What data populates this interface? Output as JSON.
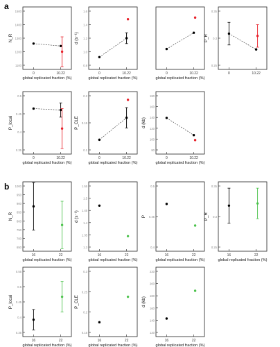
{
  "panels": {
    "a": "a",
    "b": "b"
  },
  "chart_data": [
    {
      "id": "a1",
      "type": "scatter",
      "ylabel": "N_R",
      "xlabel": "global replicated fraction (%)",
      "yticks": [
        "1500",
        "1400",
        "1300",
        "1200",
        "1100"
      ],
      "ylim": [
        1100,
        1500
      ],
      "xticks": [
        "0",
        "10.22"
      ],
      "series": [
        {
          "name": "black",
          "color": "#000000",
          "points": [
            {
              "x": "0",
              "y": 1260,
              "err": 0
            },
            {
              "x": "10.22",
              "y": 1242,
              "err": 0
            }
          ]
        },
        {
          "name": "red",
          "color": "#e8202a",
          "points": [
            {
              "x": "10.22",
              "y": 1200,
              "err": 110
            }
          ]
        }
      ]
    },
    {
      "id": "a2",
      "type": "scatter",
      "ylabel": "d (s⁻¹)",
      "xlabel": "global replicated fraction (%)",
      "yticks": [
        "1.6",
        "1.4",
        "1.2",
        "1.0",
        "0.8"
      ],
      "ylim": [
        0.8,
        1.6
      ],
      "xticks": [
        "0",
        "10.22"
      ],
      "series": [
        {
          "name": "black",
          "color": "#000000",
          "points": [
            {
              "x": "0",
              "y": 0.92,
              "err": 0
            },
            {
              "x": "10.22",
              "y": 1.2,
              "err": 0.08
            }
          ]
        },
        {
          "name": "red",
          "color": "#e8202a",
          "points": [
            {
              "x": "10.22",
              "y": 1.48,
              "err": 0
            }
          ]
        }
      ]
    },
    {
      "id": "a3",
      "type": "scatter",
      "ylabel": "",
      "xlabel": "global replicated fraction (%)",
      "yticks": [],
      "ylim": [
        0,
        1
      ],
      "xticks": [
        "0",
        "10.22"
      ],
      "series": [
        {
          "name": "black",
          "color": "#000000",
          "points": [
            {
              "x": "0",
              "y": 0.3,
              "err": 0
            },
            {
              "x": "10.22",
              "y": 0.6,
              "err": 0
            }
          ]
        },
        {
          "name": "red",
          "color": "#e8202a",
          "points": [
            {
              "x": "10.22",
              "y": 0.88,
              "err": 0
            }
          ]
        }
      ]
    },
    {
      "id": "a4",
      "type": "scatter",
      "ylabel": "P_R",
      "xlabel": "",
      "yticks": [
        "0.35",
        "0.3",
        "0.25"
      ],
      "ylim": [
        0.24,
        0.36
      ],
      "xticks": [
        "0",
        "10.22"
      ],
      "series": [
        {
          "name": "black",
          "color": "#000000",
          "points": [
            {
              "x": "0",
              "y": 0.31,
              "err": 0.025
            },
            {
              "x": "10.22",
              "y": 0.275,
              "err": 0
            }
          ]
        },
        {
          "name": "red",
          "color": "#e8202a",
          "points": [
            {
              "x": "10.22",
              "y": 0.305,
              "err": 0.025
            }
          ]
        }
      ]
    },
    {
      "id": "a5",
      "type": "scatter",
      "ylabel": "P_local",
      "xlabel": "global replicated fraction (%)",
      "yticks": [
        "0.5",
        "0.45",
        "0.4",
        "0.35"
      ],
      "ylim": [
        0.33,
        0.52
      ],
      "xticks": [
        "0",
        "10.22"
      ],
      "series": [
        {
          "name": "black",
          "color": "#000000",
          "points": [
            {
              "x": "0",
              "y": 0.475,
              "err": 0
            },
            {
              "x": "10.22",
              "y": 0.47,
              "err": 0.025
            }
          ]
        },
        {
          "name": "red",
          "color": "#e8202a",
          "points": [
            {
              "x": "10.22",
              "y": 0.405,
              "err": 0.07
            }
          ]
        }
      ]
    },
    {
      "id": "a6",
      "type": "scatter",
      "ylabel": "P_CLE",
      "xlabel": "global replicated fraction (%)",
      "yticks": [
        "0.2",
        "0.15",
        "0.1"
      ],
      "ylim": [
        0.08,
        0.24
      ],
      "xticks": [
        "0",
        "10.22"
      ],
      "series": [
        {
          "name": "black",
          "color": "#000000",
          "points": [
            {
              "x": "0",
              "y": 0.11,
              "err": 0
            },
            {
              "x": "10.22",
              "y": 0.175,
              "err": 0.03
            }
          ]
        },
        {
          "name": "red",
          "color": "#e8202a",
          "points": [
            {
              "x": "10.22",
              "y": 0.228,
              "err": 0
            }
          ]
        }
      ]
    },
    {
      "id": "a7",
      "type": "scatter",
      "ylabel": "d (kb)",
      "xlabel": "global replicated fraction (%)",
      "yticks": [
        "180",
        "160",
        "140",
        "120",
        "100",
        "80"
      ],
      "ylim": [
        80,
        190
      ],
      "xticks": [
        "0",
        "10.22"
      ],
      "series": [
        {
          "name": "black",
          "color": "#000000",
          "points": [
            {
              "x": "0",
              "y": 145,
              "err": 0
            },
            {
              "x": "10.22",
              "y": 110,
              "err": 0
            }
          ]
        },
        {
          "name": "red",
          "color": "#e8202a",
          "points": [
            {
              "x": "10.22",
              "y": 100,
              "err": 0
            }
          ]
        }
      ]
    },
    {
      "id": "b1",
      "type": "scatter",
      "ylabel": "N_R",
      "xlabel": "global replicated fraction (%)",
      "yticks": [
        "1000",
        "950",
        "900",
        "850",
        "800",
        "750",
        "700",
        "650"
      ],
      "ylim": [
        640,
        1000
      ],
      "xticks": [
        "16",
        "22"
      ],
      "series": [
        {
          "name": "black",
          "color": "#000000",
          "points": [
            {
              "x": "16",
              "y": 880,
              "err": 140
            }
          ]
        },
        {
          "name": "green",
          "color": "#4cc24c",
          "points": [
            {
              "x": "22",
              "y": 770,
              "err": 140
            }
          ]
        }
      ]
    },
    {
      "id": "b2",
      "type": "scatter",
      "ylabel": "d (s⁻¹)",
      "xlabel": "global replicated fraction (%)",
      "yticks": [
        "1.55",
        "1.5",
        "1.45",
        "1.4",
        "1.35",
        "1.3"
      ],
      "ylim": [
        1.28,
        1.56
      ],
      "xticks": [
        "16",
        "22"
      ],
      "series": [
        {
          "name": "black",
          "color": "#000000",
          "points": [
            {
              "x": "16",
              "y": 1.47,
              "err": 0
            }
          ]
        },
        {
          "name": "green",
          "color": "#4cc24c",
          "points": [
            {
              "x": "22",
              "y": 1.33,
              "err": 0
            }
          ]
        }
      ]
    },
    {
      "id": "b3",
      "type": "scatter",
      "ylabel": "P",
      "xlabel": "global replicated fraction (%)",
      "yticks": [
        "0.5",
        "0.45",
        "0.4"
      ],
      "ylim": [
        0.38,
        0.55
      ],
      "xticks": [
        "16",
        "22"
      ],
      "series": [
        {
          "name": "black",
          "color": "#000000",
          "points": [
            {
              "x": "16",
              "y": 0.5,
              "err": 0
            }
          ]
        },
        {
          "name": "green",
          "color": "#4cc24c",
          "points": [
            {
              "x": "22",
              "y": 0.44,
              "err": 0
            }
          ]
        }
      ]
    },
    {
      "id": "b4",
      "type": "scatter",
      "ylabel": "P_R",
      "xlabel": "global replicated fraction (%)",
      "yticks": [
        "0.35",
        "0.3",
        "0.25"
      ],
      "ylim": [
        0.22,
        0.36
      ],
      "xticks": [
        "16",
        "22"
      ],
      "series": [
        {
          "name": "black",
          "color": "#000000",
          "points": [
            {
              "x": "16",
              "y": 0.315,
              "err": 0.04
            }
          ]
        },
        {
          "name": "green",
          "color": "#4cc24c",
          "points": [
            {
              "x": "22",
              "y": 0.32,
              "err": 0.035
            }
          ]
        }
      ]
    },
    {
      "id": "b5",
      "type": "scatter",
      "ylabel": "P_local",
      "xlabel": "global replicated fraction (%)",
      "yticks": [
        "0.55",
        "0.5",
        "0.45",
        "0.4",
        "0.35"
      ],
      "ylim": [
        0.32,
        0.56
      ],
      "xticks": [
        "16",
        "22"
      ],
      "series": [
        {
          "name": "black",
          "color": "#000000",
          "points": [
            {
              "x": "16",
              "y": 0.37,
              "err": 0.04
            }
          ]
        },
        {
          "name": "green",
          "color": "#4cc24c",
          "points": [
            {
              "x": "22",
              "y": 0.46,
              "err": 0.06
            }
          ]
        }
      ]
    },
    {
      "id": "b6",
      "type": "scatter",
      "ylabel": "P_CLE",
      "xlabel": "global replicated fraction (%)",
      "yticks": [
        "0.3",
        "0.25",
        "0.2",
        "0.15"
      ],
      "ylim": [
        0.13,
        0.31
      ],
      "xticks": [
        "16",
        "22"
      ],
      "series": [
        {
          "name": "black",
          "color": "#000000",
          "points": [
            {
              "x": "16",
              "y": 0.16,
              "err": 0
            }
          ]
        },
        {
          "name": "green",
          "color": "#4cc24c",
          "points": [
            {
              "x": "22",
              "y": 0.235,
              "err": 0
            }
          ]
        }
      ]
    },
    {
      "id": "b7",
      "type": "scatter",
      "ylabel": "d (kb)",
      "xlabel": "global replicated fraction (%)",
      "yticks": [
        "220",
        "200",
        "180",
        "160",
        "140",
        "120"
      ],
      "ylim": [
        115,
        225
      ],
      "xticks": [
        "16",
        "22"
      ],
      "series": [
        {
          "name": "black",
          "color": "#000000",
          "points": [
            {
              "x": "16",
              "y": 140,
              "err": 0
            }
          ]
        },
        {
          "name": "green",
          "color": "#4cc24c",
          "points": [
            {
              "x": "22",
              "y": 190,
              "err": 0
            }
          ]
        }
      ]
    }
  ]
}
